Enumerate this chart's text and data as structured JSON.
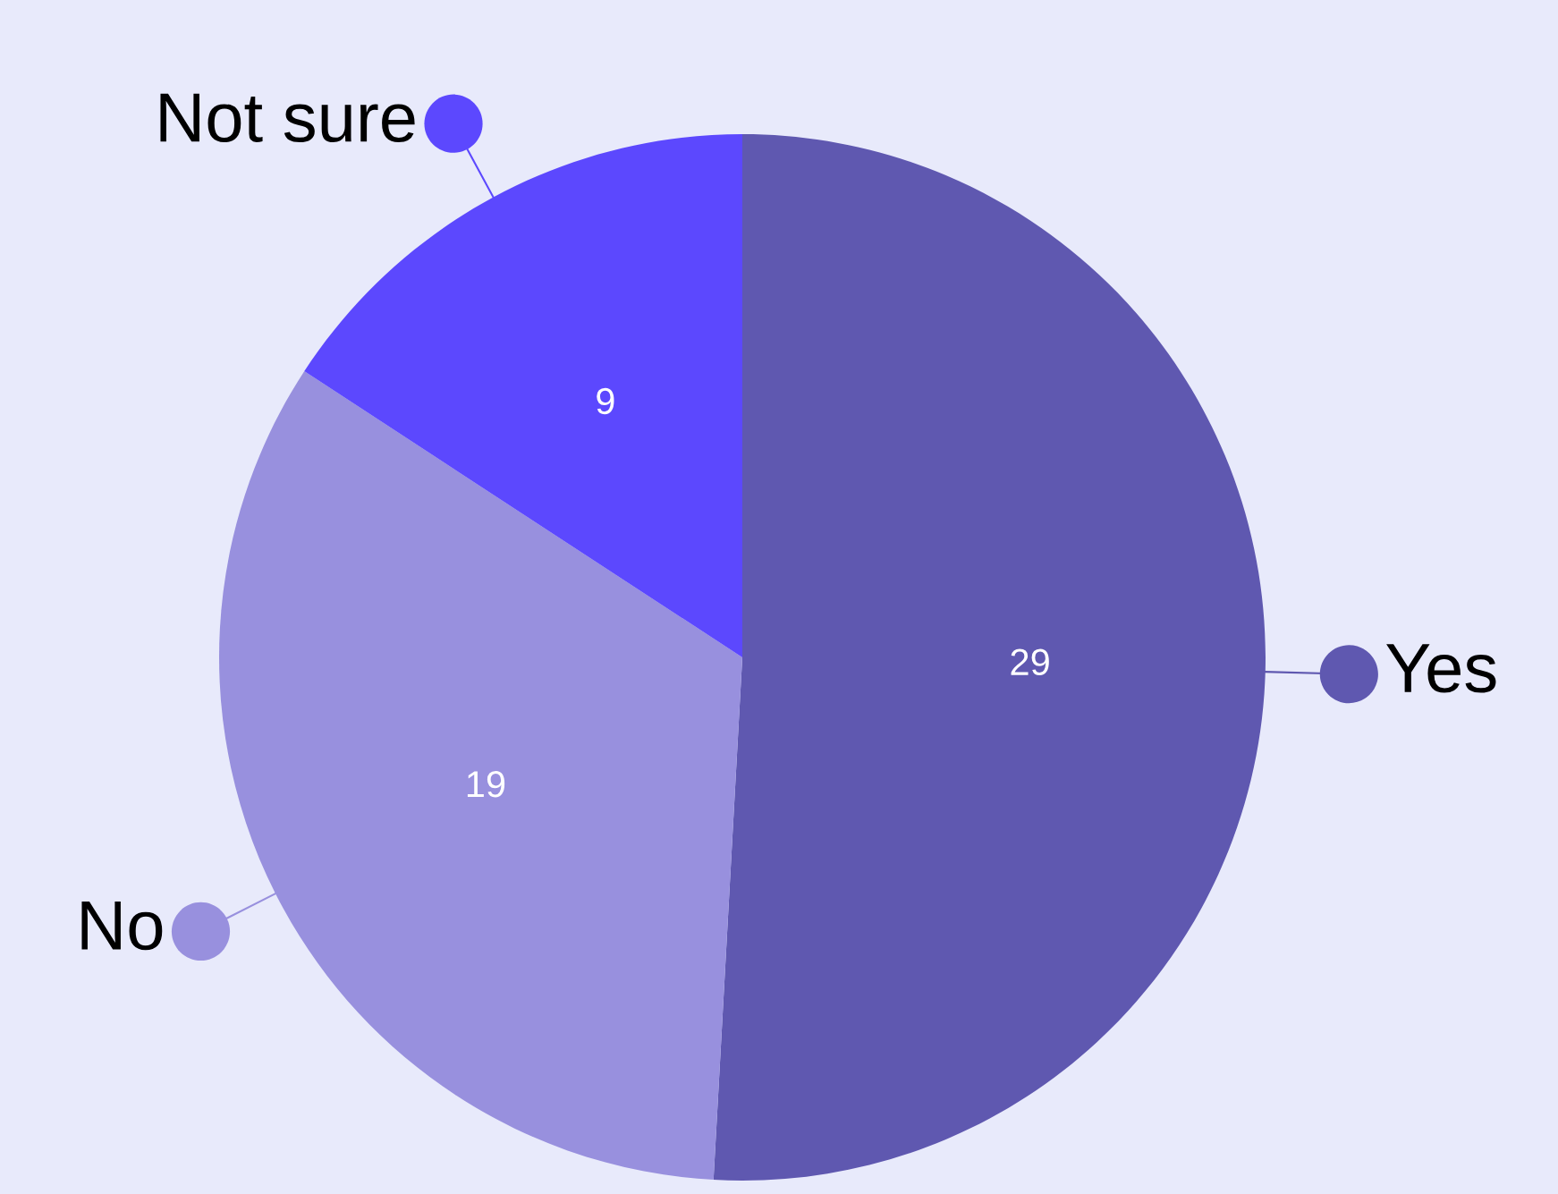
{
  "chart_data": {
    "type": "pie",
    "categories": [
      "Yes",
      "No",
      "Not sure"
    ],
    "values": [
      29,
      19,
      9
    ],
    "colors": [
      "#5f58b0",
      "#9890de",
      "#5c48fe"
    ],
    "data_labels": true,
    "legend": "left"
  }
}
